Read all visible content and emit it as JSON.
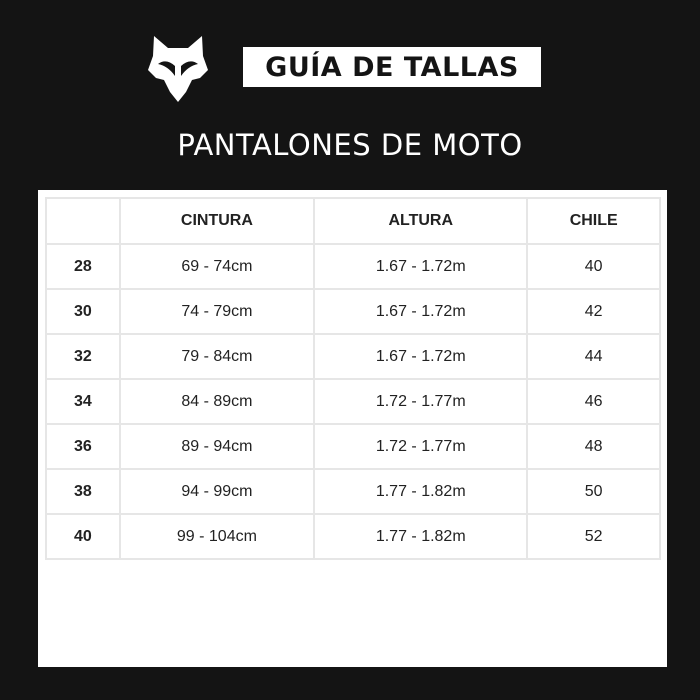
{
  "header": {
    "logo": "fox-head-logo",
    "title": "GUÍA DE TALLAS",
    "subtitle": "PANTALONES DE MOTO"
  },
  "table": {
    "columns": [
      "",
      "CINTURA",
      "ALTURA",
      "CHILE"
    ],
    "rows": [
      [
        "28",
        "69 - 74cm",
        "1.67 - 1.72m",
        "40"
      ],
      [
        "30",
        "74 - 79cm",
        "1.67 - 1.72m",
        "42"
      ],
      [
        "32",
        "79 - 84cm",
        "1.67 - 1.72m",
        "44"
      ],
      [
        "34",
        "84 - 89cm",
        "1.72 - 1.77m",
        "46"
      ],
      [
        "36",
        "89 - 94cm",
        "1.72 - 1.77m",
        "48"
      ],
      [
        "38",
        "94 - 99cm",
        "1.77 - 1.82m",
        "50"
      ],
      [
        "40",
        "99 - 104cm",
        "1.77 - 1.82m",
        "52"
      ]
    ]
  }
}
